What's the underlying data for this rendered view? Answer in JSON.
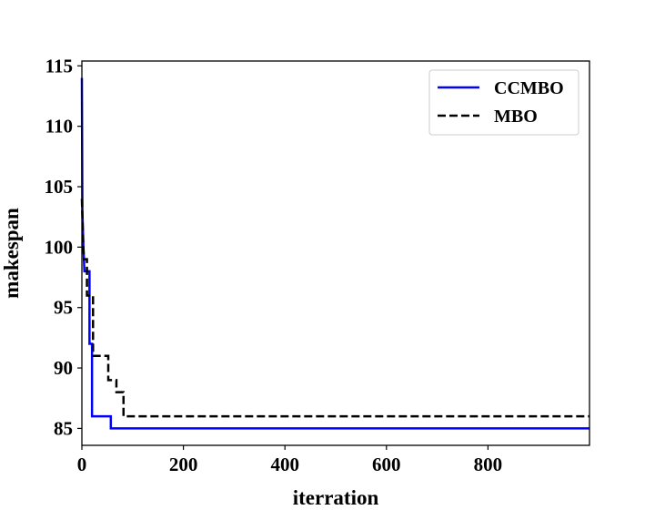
{
  "chart_data": {
    "type": "line",
    "xlabel": "iterration",
    "ylabel": "makespan",
    "xlim": [
      0,
      1000
    ],
    "ylim": [
      83.6,
      115.4
    ],
    "x_ticks": [
      0,
      200,
      400,
      600,
      800
    ],
    "x_tick_labels": [
      "0",
      "200",
      "400",
      "600",
      "800"
    ],
    "y_ticks": [
      85,
      90,
      95,
      100,
      105,
      110,
      115
    ],
    "y_tick_labels": [
      "85",
      "90",
      "95",
      "100",
      "105",
      "110",
      "115"
    ],
    "grid": false,
    "legend_position": "top-right",
    "series": [
      {
        "name": "CCMBO",
        "color": "#0000ff",
        "style": "solid",
        "points": [
          [
            0,
            114
          ],
          [
            1,
            103
          ],
          [
            3,
            100
          ],
          [
            5,
            98
          ],
          [
            15,
            98
          ],
          [
            15,
            92
          ],
          [
            20,
            92
          ],
          [
            20,
            86
          ],
          [
            57,
            86
          ],
          [
            57,
            85
          ],
          [
            1000,
            85
          ]
        ]
      },
      {
        "name": "MBO",
        "color": "#000000",
        "style": "dashed",
        "points": [
          [
            0,
            104
          ],
          [
            2,
            101
          ],
          [
            4,
            99
          ],
          [
            10,
            99
          ],
          [
            10,
            96
          ],
          [
            22,
            96
          ],
          [
            22,
            91
          ],
          [
            52,
            91
          ],
          [
            52,
            89
          ],
          [
            68,
            89
          ],
          [
            68,
            88
          ],
          [
            82,
            88
          ],
          [
            82,
            86
          ],
          [
            1000,
            86
          ]
        ]
      }
    ]
  }
}
